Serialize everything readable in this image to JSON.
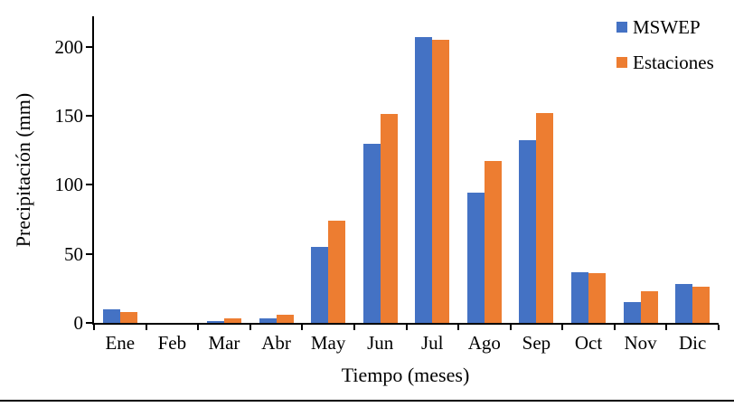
{
  "chart_data": {
    "type": "bar",
    "title": "",
    "xlabel": "Tiempo (meses)",
    "ylabel": "Precipitación (mm)",
    "categories": [
      "Ene",
      "Feb",
      "Mar",
      "Abr",
      "May",
      "Jun",
      "Jul",
      "Ago",
      "Sep",
      "Oct",
      "Nov",
      "Dic"
    ],
    "series": [
      {
        "name": "MSWEP",
        "color": "#4472C4",
        "values": [
          10,
          0,
          1,
          3,
          55,
          130,
          207,
          94,
          132,
          37,
          15,
          28
        ]
      },
      {
        "name": "Estaciones",
        "color": "#ED7D31",
        "values": [
          8,
          0,
          3,
          6,
          74,
          151,
          205,
          117,
          152,
          36,
          23,
          26
        ]
      }
    ],
    "yticks": [
      0,
      50,
      100,
      150,
      200
    ],
    "ylim": [
      0,
      222
    ],
    "grid": false,
    "legend_position": "top-right",
    "axis_color": "#000000"
  }
}
